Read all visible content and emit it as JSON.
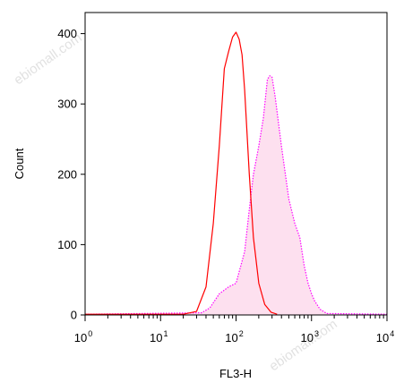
{
  "chart_data": {
    "type": "area",
    "title": "",
    "xlabel": "FL3-H",
    "ylabel": "Count",
    "xscale": "log",
    "xlim": [
      1,
      10000
    ],
    "ylim": [
      0,
      430
    ],
    "x_ticks": [
      {
        "base": "10",
        "exp": "0",
        "value": 1
      },
      {
        "base": "10",
        "exp": "1",
        "value": 10
      },
      {
        "base": "10",
        "exp": "2",
        "value": 100
      },
      {
        "base": "10",
        "exp": "3",
        "value": 1000
      },
      {
        "base": "10",
        "exp": "4",
        "value": 10000
      }
    ],
    "y_ticks": [
      "0",
      "100",
      "200",
      "300",
      "400"
    ],
    "grid": false,
    "legend": "none",
    "series": [
      {
        "style": "solid",
        "color": "#ff0000",
        "fill": false,
        "x": [
          1,
          20,
          30,
          40,
          50,
          60,
          70,
          80,
          90,
          100,
          110,
          120,
          130,
          150,
          170,
          200,
          240,
          290,
          350
        ],
        "y": [
          1,
          1,
          5,
          40,
          130,
          240,
          350,
          375,
          395,
          402,
          392,
          370,
          320,
          200,
          110,
          45,
          15,
          4,
          1
        ]
      },
      {
        "style": "dotted",
        "color": "#ff00ff",
        "fill": true,
        "fill_color": "#fde0ef",
        "x": [
          1,
          35,
          45,
          60,
          80,
          100,
          130,
          150,
          170,
          200,
          230,
          260,
          280,
          300,
          330,
          400,
          500,
          600,
          700,
          800,
          900,
          1000,
          1100,
          1300,
          1600,
          10000
        ],
        "y": [
          1,
          3,
          10,
          30,
          40,
          45,
          90,
          150,
          200,
          240,
          280,
          335,
          340,
          338,
          310,
          240,
          165,
          130,
          110,
          70,
          45,
          30,
          20,
          8,
          2,
          1
        ]
      }
    ]
  },
  "watermark": {
    "text": "ebiomall.com"
  }
}
